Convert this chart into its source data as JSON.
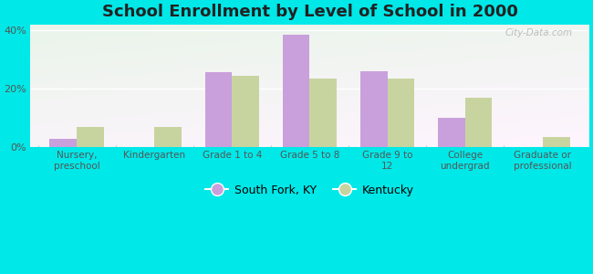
{
  "title": "School Enrollment by Level of School in 2000",
  "categories": [
    "Nursery,\npreschool",
    "Kindergarten",
    "Grade 1 to 4",
    "Grade 5 to 8",
    "Grade 9 to\n12",
    "College\nundergrad",
    "Graduate or\nprofessional"
  ],
  "south_fork_values": [
    3.0,
    0.0,
    25.5,
    38.5,
    26.0,
    10.0,
    0.0
  ],
  "kentucky_values": [
    7.0,
    7.0,
    24.5,
    23.5,
    23.5,
    17.0,
    3.5
  ],
  "south_fork_color": "#c9a0dc",
  "kentucky_color": "#c8d4a0",
  "background_outer": "#00e8e8",
  "ylim": [
    0,
    42
  ],
  "yticks": [
    0,
    20,
    40
  ],
  "ytick_labels": [
    "0%",
    "20%",
    "40%"
  ],
  "bar_width": 0.35,
  "legend_label_1": "South Fork, KY",
  "legend_label_2": "Kentucky",
  "watermark": "City-Data.com"
}
